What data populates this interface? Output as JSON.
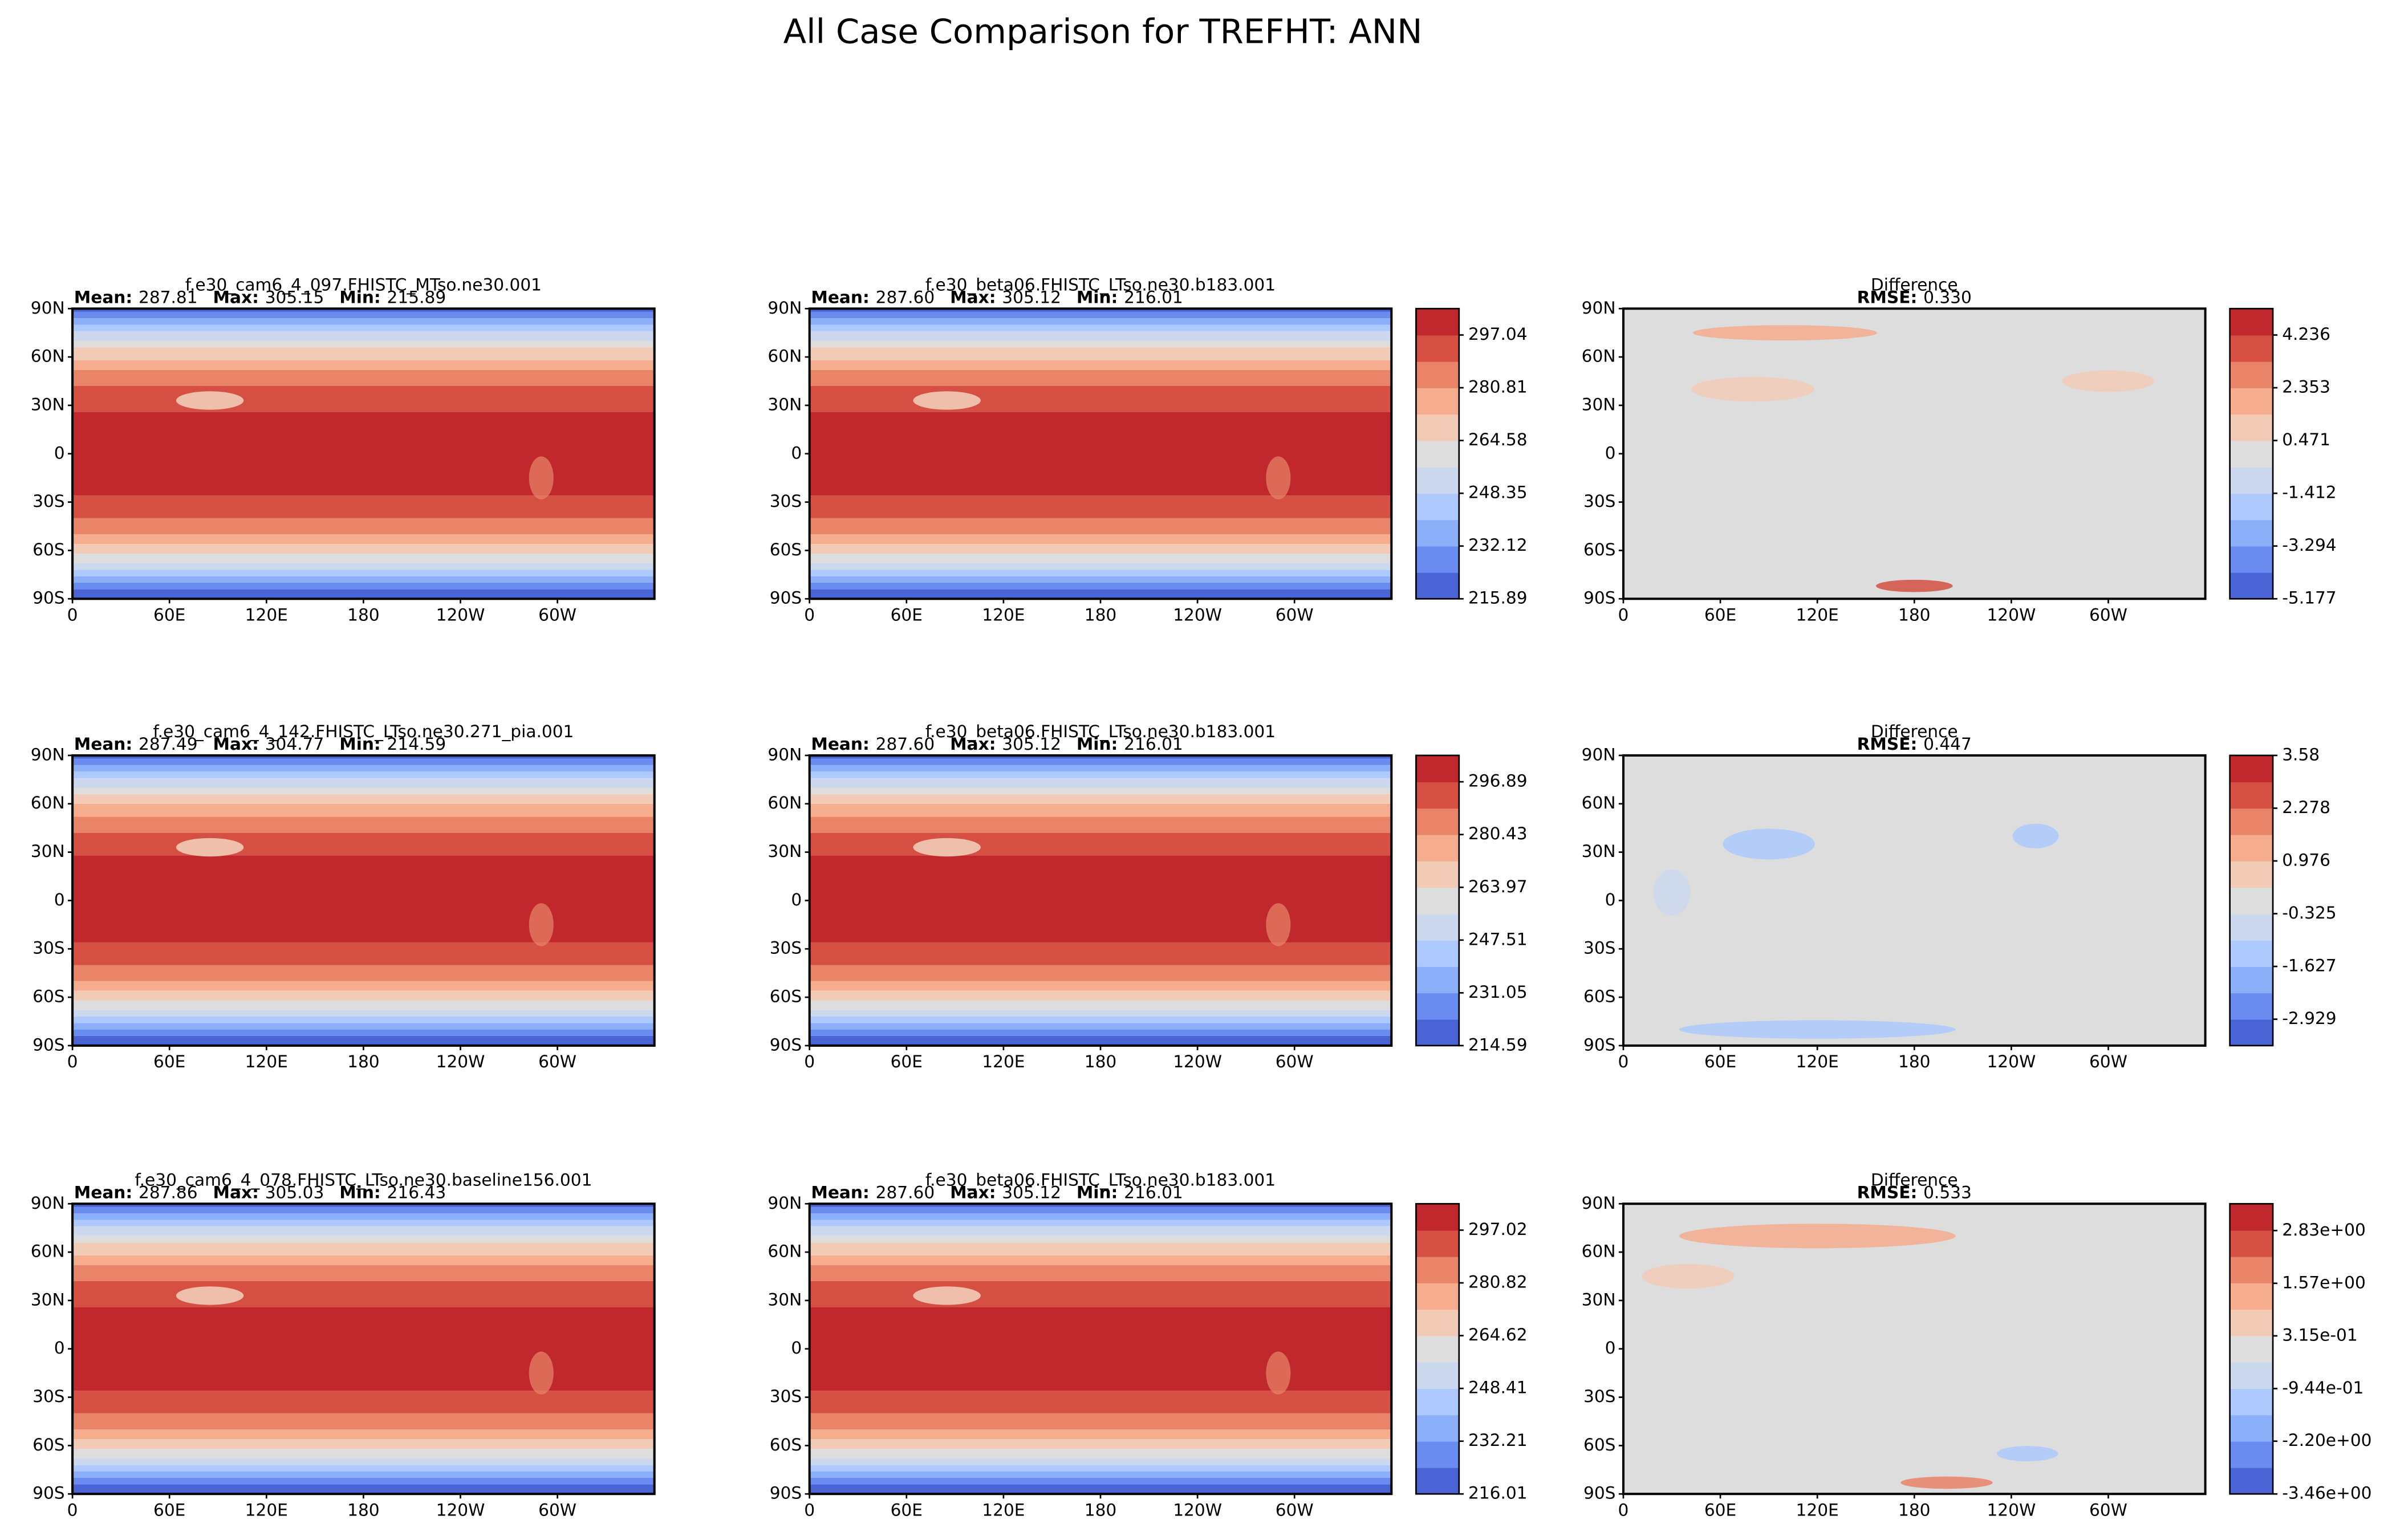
{
  "title": "All Case Comparison for TREFHT: ANN",
  "map_axes": {
    "xlim": [
      0,
      360
    ],
    "ylim": [
      -90,
      90
    ],
    "xticks": [
      0,
      {
        "value": 60,
        "label": "60E"
      },
      {
        "value": 120,
        "label": "120E"
      },
      180,
      {
        "value": 240,
        "label": "120W"
      },
      {
        "value": 300,
        "label": "60W"
      }
    ],
    "yticks": [
      {
        "value": -90,
        "label": "90S"
      },
      {
        "value": -60,
        "label": "60S"
      },
      {
        "value": -30,
        "label": "30S"
      },
      0,
      {
        "value": 30,
        "label": "30N"
      },
      {
        "value": 60,
        "label": "60N"
      },
      {
        "value": 90,
        "label": "90N"
      }
    ]
  },
  "chart_data": [
    {
      "type": "contour",
      "title": "f.e30_cam6_4_097.FHISTC_MTso.ne30.001",
      "stats": [
        {
          "name": "Mean:",
          "value": "287.81"
        },
        {
          "name": "Max:",
          "value": "305.15"
        },
        {
          "name": "Min:",
          "value": "215.89"
        }
      ]
    },
    {
      "type": "contour",
      "title": "f.e30_beta06.FHISTC_LTso.ne30.b183.001",
      "stats": [
        {
          "name": "Mean:",
          "value": "287.60"
        },
        {
          "name": "Max:",
          "value": "305.12"
        },
        {
          "name": "Min:",
          "value": "216.01"
        }
      ],
      "colorbar": {
        "clim": [
          215.89,
          305.15
        ],
        "colors": [
          "#4b64d5",
          "#6a8bef",
          "#8caff9",
          "#adc9fd",
          "#cbd8ee",
          "#dddddd",
          "#f2cbb7",
          "#f5ad8e",
          "#ea8469",
          "#d55042",
          "#c0282d"
        ],
        "ticks": [
          297.04,
          280.81,
          264.58,
          248.35,
          232.12,
          215.89
        ]
      }
    },
    {
      "type": "difference",
      "title": "Difference",
      "stats": [
        {
          "name": "RMSE:",
          "value": "0.330"
        }
      ],
      "colorbar": {
        "clim": [
          -5.177,
          5.177
        ],
        "colors": [
          "#4b64d5",
          "#6a8bef",
          "#8caff9",
          "#adc9fd",
          "#cbd8ee",
          "#dddddd",
          "#f2cbb7",
          "#f5ad8e",
          "#ea8469",
          "#d55042",
          "#c0282d"
        ],
        "ticks": [
          4.236,
          2.353,
          0.471,
          -1.412,
          -3.294,
          -5.177
        ]
      }
    },
    {
      "type": "contour",
      "title": "f.e30_cam6_4_142.FHISTC_LTso.ne30.271_pia.001",
      "stats": [
        {
          "name": "Mean:",
          "value": "287.49"
        },
        {
          "name": "Max:",
          "value": "304.77"
        },
        {
          "name": "Min:",
          "value": "214.59"
        }
      ]
    },
    {
      "type": "contour",
      "title": "f.e30_beta06.FHISTC_LTso.ne30.b183.001",
      "stats": [
        {
          "name": "Mean:",
          "value": "287.60"
        },
        {
          "name": "Max:",
          "value": "305.12"
        },
        {
          "name": "Min:",
          "value": "216.01"
        }
      ],
      "colorbar": {
        "clim": [
          214.59,
          305.12
        ],
        "colors": [
          "#4b64d5",
          "#6a8bef",
          "#8caff9",
          "#adc9fd",
          "#cbd8ee",
          "#dddddd",
          "#f2cbb7",
          "#f5ad8e",
          "#ea8469",
          "#d55042",
          "#c0282d"
        ],
        "ticks": [
          296.89,
          280.43,
          263.97,
          247.51,
          231.05,
          214.59
        ]
      }
    },
    {
      "type": "difference",
      "title": "Difference",
      "stats": [
        {
          "name": "RMSE:",
          "value": "0.447"
        }
      ],
      "colorbar": {
        "clim": [
          -3.58,
          3.58
        ],
        "colors": [
          "#4b64d5",
          "#6a8bef",
          "#8caff9",
          "#adc9fd",
          "#cbd8ee",
          "#dddddd",
          "#f2cbb7",
          "#f5ad8e",
          "#ea8469",
          "#d55042",
          "#c0282d"
        ],
        "ticks": [
          3.58,
          2.278,
          0.976,
          -0.325,
          -1.627,
          -2.929
        ]
      }
    },
    {
      "type": "contour",
      "title": "f.e30_cam6_4_078.FHISTC_LTso.ne30.baseline156.001",
      "stats": [
        {
          "name": "Mean:",
          "value": "287.86"
        },
        {
          "name": "Max:",
          "value": "305.03"
        },
        {
          "name": "Min:",
          "value": "216.43"
        }
      ]
    },
    {
      "type": "contour",
      "title": "f.e30_beta06.FHISTC_LTso.ne30.b183.001",
      "stats": [
        {
          "name": "Mean:",
          "value": "287.60"
        },
        {
          "name": "Max:",
          "value": "305.12"
        },
        {
          "name": "Min:",
          "value": "216.01"
        }
      ],
      "colorbar": {
        "clim": [
          216.01,
          305.12
        ],
        "colors": [
          "#4b64d5",
          "#6a8bef",
          "#8caff9",
          "#adc9fd",
          "#cbd8ee",
          "#dddddd",
          "#f2cbb7",
          "#f5ad8e",
          "#ea8469",
          "#d55042",
          "#c0282d"
        ],
        "ticks": [
          297.02,
          280.82,
          264.62,
          248.41,
          232.21,
          216.01
        ]
      }
    },
    {
      "type": "difference",
      "title": "Difference",
      "stats": [
        {
          "name": "RMSE:",
          "value": "0.533"
        }
      ],
      "colorbar": {
        "clim": [
          -3.46,
          3.47
        ],
        "colors": [
          "#4b64d5",
          "#6a8bef",
          "#8caff9",
          "#adc9fd",
          "#cbd8ee",
          "#dddddd",
          "#f2cbb7",
          "#f5ad8e",
          "#ea8469",
          "#d55042",
          "#c0282d"
        ],
        "ticks": [
          {
            "value": 2.83,
            "label": "2.83e+00"
          },
          {
            "value": 1.57,
            "label": "1.57e+00"
          },
          {
            "value": 0.315,
            "label": "3.15e-01"
          },
          {
            "value": -0.944,
            "label": "-9.44e-01"
          },
          {
            "value": -2.2,
            "label": "-2.20e+00"
          },
          {
            "value": -3.46,
            "label": "-3.46e+00"
          }
        ]
      }
    }
  ]
}
